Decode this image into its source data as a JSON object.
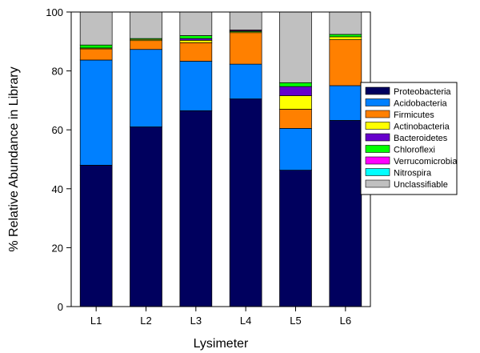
{
  "chart_data": {
    "type": "bar",
    "stacked": true,
    "title": "",
    "xlabel": "Lysimeter",
    "ylabel": "% Relative Abundance in Library",
    "ylim": [
      0,
      100
    ],
    "yticks": [
      0,
      20,
      40,
      60,
      80,
      100
    ],
    "grid": false,
    "legend_position": "right",
    "categories": [
      "L1",
      "L2",
      "L3",
      "L4",
      "L5",
      "L6"
    ],
    "series": [
      {
        "name": "Proteobacteria",
        "color": "#00005e",
        "values": [
          48.0,
          61.0,
          66.5,
          70.5,
          46.3,
          63.2
        ]
      },
      {
        "name": "Acidobacteria",
        "color": "#0080ff",
        "values": [
          35.7,
          26.3,
          16.8,
          11.8,
          14.2,
          11.8
        ]
      },
      {
        "name": "Firmicutes",
        "color": "#ff8000",
        "values": [
          3.8,
          3.0,
          6.3,
          10.7,
          6.5,
          15.6
        ]
      },
      {
        "name": "Actinobacteria",
        "color": "#ffff00",
        "values": [
          0.3,
          0.4,
          0.8,
          0.3,
          4.6,
          1.0
        ]
      },
      {
        "name": "Bacteroidetes",
        "color": "#6600cc",
        "values": [
          0.0,
          0.0,
          0.6,
          0.0,
          3.1,
          0.0
        ]
      },
      {
        "name": "Chloroflexi",
        "color": "#00ff00",
        "values": [
          1.0,
          0.3,
          1.0,
          0.3,
          1.3,
          0.8
        ]
      },
      {
        "name": "Verrucomicrobia",
        "color": "#ff00ff",
        "values": [
          0.0,
          0.0,
          0.0,
          0.3,
          0.0,
          0.0
        ]
      },
      {
        "name": "Nitrospira",
        "color": "#00ffff",
        "values": [
          0.0,
          0.0,
          0.0,
          0.0,
          0.0,
          0.0
        ]
      },
      {
        "name": "Unclassifiable",
        "color": "#c0c0c0",
        "values": [
          11.2,
          9.0,
          8.0,
          6.1,
          24.0,
          7.6
        ]
      }
    ]
  }
}
